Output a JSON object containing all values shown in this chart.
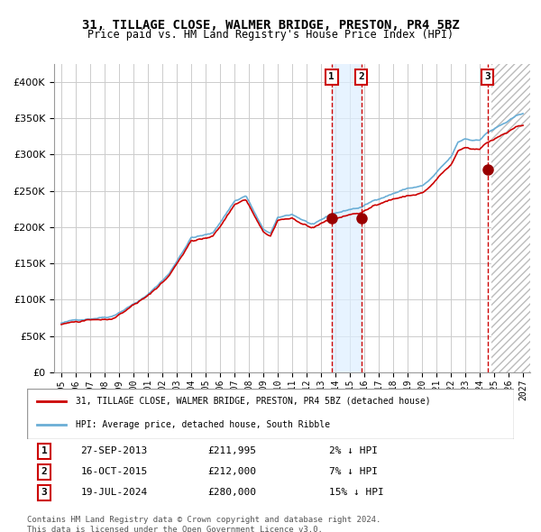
{
  "title": "31, TILLAGE CLOSE, WALMER BRIDGE, PRESTON, PR4 5BZ",
  "subtitle": "Price paid vs. HM Land Registry's House Price Index (HPI)",
  "legend_property": "31, TILLAGE CLOSE, WALMER BRIDGE, PRESTON, PR4 5BZ (detached house)",
  "legend_hpi": "HPI: Average price, detached house, South Ribble",
  "footnote": "Contains HM Land Registry data © Crown copyright and database right 2024.\nThis data is licensed under the Open Government Licence v3.0.",
  "sale_events": [
    {
      "label": "1",
      "date": "27-SEP-2013",
      "price": "£211,995",
      "change": "2% ↓ HPI",
      "x_year": 2013.74
    },
    {
      "label": "2",
      "date": "16-OCT-2015",
      "price": "£212,000",
      "change": "7% ↓ HPI",
      "x_year": 2015.79
    },
    {
      "label": "3",
      "date": "19-JUL-2024",
      "price": "£280,000",
      "change": "15% ↓ HPI",
      "x_year": 2024.54
    }
  ],
  "sale_prices": [
    211995,
    212000,
    280000
  ],
  "hpi_color": "#6aaed6",
  "price_color": "#cc0000",
  "dot_color": "#990000",
  "shade_color": "#ddeeff",
  "hatch_color": "#cccccc",
  "background_color": "#ffffff",
  "grid_color": "#cccccc",
  "ylim": [
    0,
    425000
  ],
  "yticks": [
    0,
    50000,
    100000,
    150000,
    200000,
    250000,
    300000,
    350000,
    400000
  ],
  "xlim_start": 1994.5,
  "xlim_end": 2027.5,
  "xtick_years": [
    1995,
    1996,
    1997,
    1998,
    1999,
    2000,
    2001,
    2002,
    2003,
    2004,
    2005,
    2006,
    2007,
    2008,
    2009,
    2010,
    2011,
    2012,
    2013,
    2014,
    2015,
    2016,
    2017,
    2018,
    2019,
    2020,
    2021,
    2022,
    2023,
    2024,
    2025,
    2026,
    2027
  ]
}
